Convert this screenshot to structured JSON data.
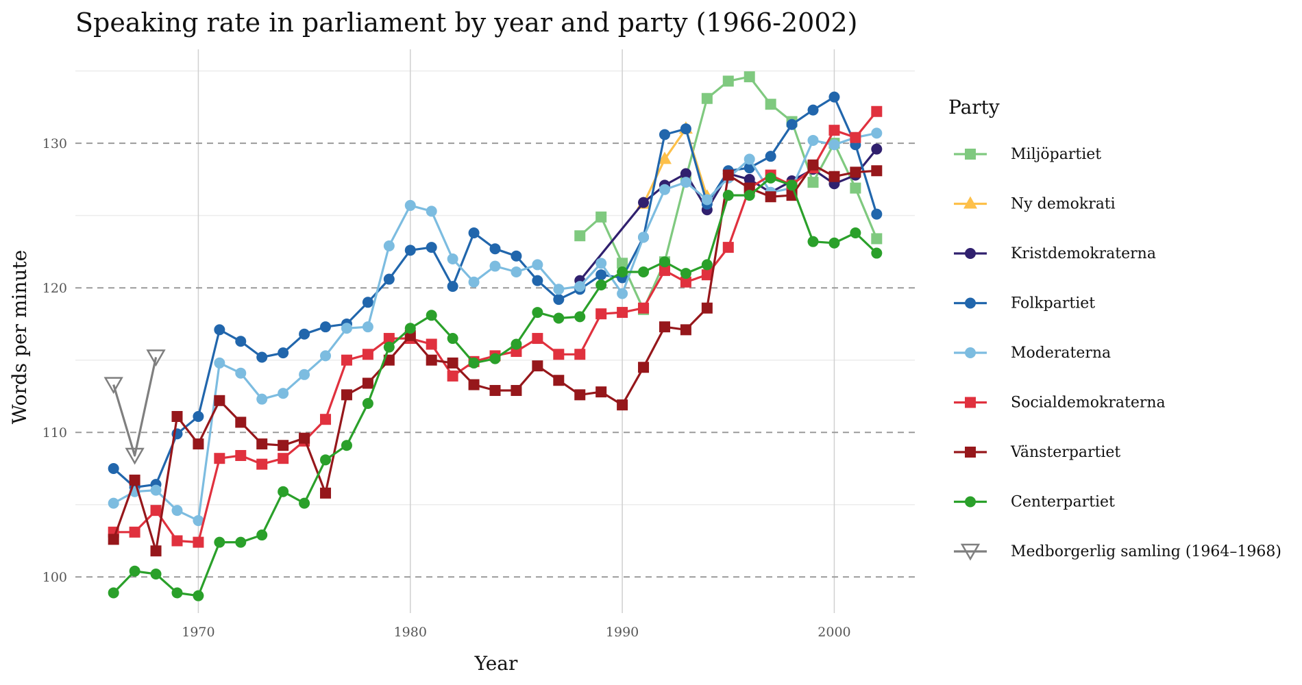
{
  "chart_data": {
    "type": "line",
    "title": "Speaking rate in parliament by year and party (1966-2002)",
    "xlabel": "Year",
    "ylabel": "Words per minute",
    "xlim": [
      1964.2,
      2003.8
    ],
    "ylim": [
      97.5,
      136.5
    ],
    "x_ticks": [
      1970,
      1980,
      1990,
      2000
    ],
    "y_ticks": [
      100,
      110,
      120,
      130
    ],
    "grid": true,
    "legend": {
      "title": "Party",
      "position": "right"
    },
    "series": [
      {
        "name": "Miljöpartiet",
        "color": "#7fc97f",
        "marker": "square",
        "points": [
          [
            1988,
            123.6
          ],
          [
            1989,
            124.9
          ],
          [
            1990,
            121.7
          ],
          [
            1991,
            118.5
          ],
          [
            1992,
            121.8
          ],
          [
            1993,
            127.6
          ],
          [
            1994,
            133.1
          ],
          [
            1995,
            134.3
          ],
          [
            1996,
            134.6
          ],
          [
            1997,
            132.7
          ],
          [
            1998,
            131.5
          ],
          [
            1999,
            127.3
          ],
          [
            2000,
            130.0
          ],
          [
            2001,
            126.9
          ],
          [
            2002,
            123.4
          ]
        ]
      },
      {
        "name": "Ny demokrati",
        "color": "#fdc04a",
        "marker": "triangle",
        "points": [
          [
            1991,
            125.8
          ],
          [
            1992,
            128.9
          ],
          [
            1993,
            131.0
          ],
          [
            1994,
            126.3
          ]
        ]
      },
      {
        "name": "Kristdemokraterna",
        "color": "#30206e",
        "marker": "circle",
        "points": [
          [
            1988,
            120.5
          ],
          [
            1991,
            125.9
          ],
          [
            1992,
            127.1
          ],
          [
            1993,
            127.9
          ],
          [
            1994,
            125.4
          ],
          [
            1995,
            127.9
          ],
          [
            1996,
            127.5
          ],
          [
            1997,
            126.6
          ],
          [
            1998,
            127.4
          ],
          [
            1999,
            128.2
          ],
          [
            2000,
            127.2
          ],
          [
            2001,
            127.8
          ],
          [
            2002,
            129.6
          ]
        ]
      },
      {
        "name": "Folkpartiet",
        "color": "#2166ac",
        "marker": "circle",
        "points": [
          [
            1966,
            107.5
          ],
          [
            1967,
            106.2
          ],
          [
            1968,
            106.4
          ],
          [
            1969,
            109.9
          ],
          [
            1970,
            111.1
          ],
          [
            1971,
            117.1
          ],
          [
            1972,
            116.3
          ],
          [
            1973,
            115.2
          ],
          [
            1974,
            115.5
          ],
          [
            1975,
            116.8
          ],
          [
            1976,
            117.3
          ],
          [
            1977,
            117.5
          ],
          [
            1978,
            119.0
          ],
          [
            1979,
            120.6
          ],
          [
            1980,
            122.6
          ],
          [
            1981,
            122.8
          ],
          [
            1982,
            120.1
          ],
          [
            1983,
            123.8
          ],
          [
            1984,
            122.7
          ],
          [
            1985,
            122.2
          ],
          [
            1986,
            120.5
          ],
          [
            1987,
            119.2
          ],
          [
            1988,
            119.9
          ],
          [
            1989,
            120.9
          ],
          [
            1990,
            120.7
          ],
          [
            1991,
            123.5
          ],
          [
            1992,
            130.6
          ],
          [
            1993,
            131.0
          ],
          [
            1994,
            125.8
          ],
          [
            1995,
            128.1
          ],
          [
            1996,
            128.3
          ],
          [
            1997,
            129.1
          ],
          [
            1998,
            131.3
          ],
          [
            1999,
            132.3
          ],
          [
            2000,
            133.2
          ],
          [
            2001,
            129.9
          ],
          [
            2002,
            125.1
          ]
        ]
      },
      {
        "name": "Moderaterna",
        "color": "#7cbce0",
        "marker": "circle",
        "points": [
          [
            1966,
            105.1
          ],
          [
            1967,
            105.9
          ],
          [
            1968,
            106.0
          ],
          [
            1969,
            104.6
          ],
          [
            1970,
            103.9
          ],
          [
            1971,
            114.8
          ],
          [
            1972,
            114.1
          ],
          [
            1973,
            112.3
          ],
          [
            1974,
            112.7
          ],
          [
            1975,
            114.0
          ],
          [
            1976,
            115.3
          ],
          [
            1977,
            117.2
          ],
          [
            1978,
            117.3
          ],
          [
            1979,
            122.9
          ],
          [
            1980,
            125.7
          ],
          [
            1981,
            125.3
          ],
          [
            1982,
            122.0
          ],
          [
            1983,
            120.4
          ],
          [
            1984,
            121.5
          ],
          [
            1985,
            121.1
          ],
          [
            1986,
            121.6
          ],
          [
            1987,
            119.9
          ],
          [
            1988,
            120.1
          ],
          [
            1989,
            121.7
          ],
          [
            1990,
            119.6
          ],
          [
            1991,
            123.5
          ],
          [
            1992,
            126.8
          ],
          [
            1993,
            127.3
          ],
          [
            1994,
            126.1
          ],
          [
            1995,
            127.6
          ],
          [
            1996,
            128.9
          ],
          [
            1997,
            126.6
          ],
          [
            1998,
            126.9
          ],
          [
            1999,
            130.2
          ],
          [
            2000,
            129.9
          ],
          [
            2001,
            130.4
          ],
          [
            2002,
            130.7
          ]
        ]
      },
      {
        "name": "Socialdemokraterna",
        "color": "#e0313e",
        "marker": "square",
        "points": [
          [
            1966,
            103.1
          ],
          [
            1967,
            103.1
          ],
          [
            1968,
            104.6
          ],
          [
            1969,
            102.5
          ],
          [
            1970,
            102.4
          ],
          [
            1971,
            108.2
          ],
          [
            1972,
            108.4
          ],
          [
            1973,
            107.8
          ],
          [
            1974,
            108.2
          ],
          [
            1975,
            109.4
          ],
          [
            1976,
            110.9
          ],
          [
            1977,
            115.0
          ],
          [
            1978,
            115.4
          ],
          [
            1979,
            116.5
          ],
          [
            1980,
            116.5
          ],
          [
            1981,
            116.1
          ],
          [
            1982,
            113.9
          ],
          [
            1983,
            114.9
          ],
          [
            1984,
            115.3
          ],
          [
            1985,
            115.6
          ],
          [
            1986,
            116.5
          ],
          [
            1987,
            115.4
          ],
          [
            1988,
            115.4
          ],
          [
            1989,
            118.2
          ],
          [
            1990,
            118.3
          ],
          [
            1991,
            118.6
          ],
          [
            1992,
            121.2
          ],
          [
            1993,
            120.4
          ],
          [
            1994,
            120.9
          ],
          [
            1995,
            122.8
          ],
          [
            1996,
            126.9
          ],
          [
            1997,
            127.8
          ],
          [
            1998,
            127.1
          ],
          [
            1999,
            128.3
          ],
          [
            2000,
            130.9
          ],
          [
            2001,
            130.4
          ],
          [
            2002,
            132.2
          ]
        ]
      },
      {
        "name": "Vänsterpartiet",
        "color": "#96171b",
        "marker": "square",
        "points": [
          [
            1966,
            102.6
          ],
          [
            1967,
            106.7
          ],
          [
            1968,
            101.8
          ],
          [
            1969,
            111.1
          ],
          [
            1970,
            109.2
          ],
          [
            1971,
            112.2
          ],
          [
            1972,
            110.7
          ],
          [
            1973,
            109.2
          ],
          [
            1974,
            109.1
          ],
          [
            1975,
            109.6
          ],
          [
            1976,
            105.8
          ],
          [
            1977,
            112.6
          ],
          [
            1978,
            113.4
          ],
          [
            1979,
            115.0
          ],
          [
            1980,
            116.7
          ],
          [
            1981,
            115.0
          ],
          [
            1982,
            114.8
          ],
          [
            1983,
            113.3
          ],
          [
            1984,
            112.9
          ],
          [
            1985,
            112.9
          ],
          [
            1986,
            114.6
          ],
          [
            1987,
            113.6
          ],
          [
            1988,
            112.6
          ],
          [
            1989,
            112.8
          ],
          [
            1990,
            111.9
          ],
          [
            1991,
            114.5
          ],
          [
            1992,
            117.3
          ],
          [
            1993,
            117.1
          ],
          [
            1994,
            118.6
          ],
          [
            1995,
            127.8
          ],
          [
            1996,
            126.9
          ],
          [
            1997,
            126.3
          ],
          [
            1998,
            126.4
          ],
          [
            1999,
            128.5
          ],
          [
            2000,
            127.7
          ],
          [
            2001,
            128.0
          ],
          [
            2002,
            128.1
          ]
        ]
      },
      {
        "name": "Centerpartiet",
        "color": "#2aa02a",
        "marker": "circle",
        "points": [
          [
            1966,
            98.9
          ],
          [
            1967,
            100.4
          ],
          [
            1968,
            100.2
          ],
          [
            1969,
            98.9
          ],
          [
            1970,
            98.7
          ],
          [
            1971,
            102.4
          ],
          [
            1972,
            102.4
          ],
          [
            1973,
            102.9
          ],
          [
            1974,
            105.9
          ],
          [
            1975,
            105.1
          ],
          [
            1976,
            108.1
          ],
          [
            1977,
            109.1
          ],
          [
            1978,
            112.0
          ],
          [
            1979,
            115.9
          ],
          [
            1980,
            117.2
          ],
          [
            1981,
            118.1
          ],
          [
            1982,
            116.5
          ],
          [
            1983,
            114.8
          ],
          [
            1984,
            115.1
          ],
          [
            1985,
            116.1
          ],
          [
            1986,
            118.3
          ],
          [
            1987,
            117.9
          ],
          [
            1988,
            118.0
          ],
          [
            1989,
            120.2
          ],
          [
            1990,
            121.1
          ],
          [
            1991,
            121.1
          ],
          [
            1992,
            121.8
          ],
          [
            1993,
            121.0
          ],
          [
            1994,
            121.6
          ],
          [
            1995,
            126.4
          ],
          [
            1996,
            126.4
          ],
          [
            1997,
            127.6
          ],
          [
            1998,
            127.1
          ],
          [
            1999,
            123.2
          ],
          [
            2000,
            123.1
          ],
          [
            2001,
            123.8
          ],
          [
            2002,
            122.4
          ]
        ]
      },
      {
        "name": "Medborgerlig samling (1964–1968)",
        "color": "#7f7f7f",
        "marker": "triangle-down-open",
        "points": [
          [
            1966,
            113.3
          ],
          [
            1967,
            108.4
          ],
          [
            1968,
            115.2
          ]
        ]
      }
    ]
  }
}
